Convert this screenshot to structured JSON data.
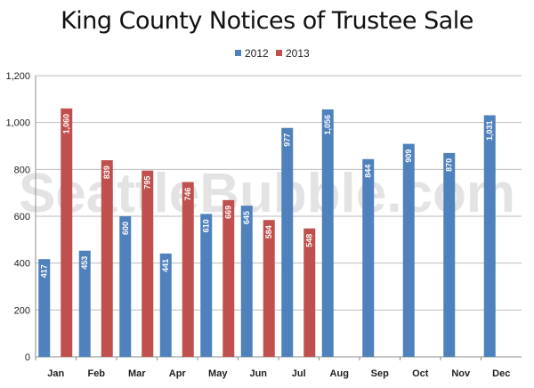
{
  "chart_data": {
    "type": "bar",
    "title": "King County Notices of Trustee Sale",
    "watermark": "SeattleBubble.com",
    "categories": [
      "Jan",
      "Feb",
      "Mar",
      "Apr",
      "May",
      "Jun",
      "Jul",
      "Aug",
      "Sep",
      "Oct",
      "Nov",
      "Dec"
    ],
    "series": [
      {
        "name": "2012",
        "color": "#4f81bd",
        "values": [
          417,
          453,
          600,
          441,
          610,
          645,
          977,
          1056,
          844,
          909,
          870,
          1031
        ],
        "labels": [
          "417",
          "453",
          "600",
          "441",
          "610",
          "645",
          "977",
          "1,056",
          "844",
          "909",
          "870",
          "1,031"
        ]
      },
      {
        "name": "2013",
        "color": "#c0504d",
        "values": [
          1060,
          839,
          795,
          746,
          669,
          584,
          548,
          null,
          null,
          null,
          null,
          null
        ],
        "labels": [
          "1,060",
          "839",
          "795",
          "746",
          "669",
          "584",
          "548",
          null,
          null,
          null,
          null,
          null
        ]
      }
    ],
    "ylim": [
      0,
      1200
    ],
    "yticks": [
      0,
      200,
      400,
      600,
      800,
      1000,
      1200
    ],
    "ytick_labels": [
      "0",
      "200",
      "400",
      "600",
      "800",
      "1,000",
      "1,200"
    ],
    "grid": true,
    "legend_position": "top-center",
    "xlabel": "",
    "ylabel": ""
  }
}
